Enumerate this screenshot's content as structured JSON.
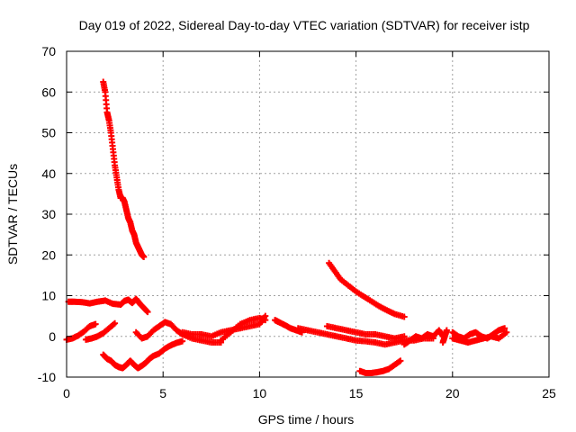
{
  "chart_data": {
    "type": "scatter",
    "title": "Day 019 of 2022, Sidereal Day-to-day VTEC variation (SDTVAR) for receiver istp",
    "xlabel": "GPS time / hours",
    "ylabel": "SDTVAR / TECUs",
    "xlim": [
      0,
      25
    ],
    "ylim": [
      -10,
      70
    ],
    "xticks": [
      0,
      5,
      10,
      15,
      20,
      25
    ],
    "yticks": [
      -10,
      0,
      10,
      20,
      30,
      40,
      50,
      60,
      70
    ],
    "grid": true,
    "marker": "+",
    "colors": {
      "series": "#ff0000",
      "grid": "#a0a0a0",
      "axis": "#000000"
    },
    "series": [
      {
        "name": "s1",
        "x": [
          1.9,
          2.0,
          2.1,
          2.2,
          2.3,
          2.4,
          2.5,
          2.6,
          2.7,
          2.8,
          2.9,
          3.0,
          3.1,
          3.2,
          3.3,
          3.4,
          3.5,
          3.6,
          3.7,
          3.8,
          3.9,
          4.0
        ],
        "y": [
          62.5,
          60.0,
          55.0,
          53.0,
          50.0,
          46.0,
          42.0,
          39.0,
          36.0,
          34.0,
          34.0,
          33.0,
          31.0,
          29.0,
          28.0,
          26.0,
          25.0,
          23.0,
          22.0,
          21.0,
          20.0,
          19.5
        ]
      },
      {
        "name": "s2",
        "x": [
          0.1,
          0.4,
          0.8,
          1.2,
          1.6,
          2.0,
          2.4,
          2.8,
          3.0,
          3.2,
          3.4,
          3.6,
          3.8,
          4.0,
          4.2
        ],
        "y": [
          8.5,
          8.5,
          8.4,
          8.1,
          8.5,
          8.8,
          8.0,
          7.8,
          8.7,
          9.0,
          8.2,
          9.2,
          8.0,
          7.0,
          6.0
        ]
      },
      {
        "name": "s3",
        "x": [
          0.0,
          0.3,
          0.6,
          0.9,
          1.2,
          1.5
        ],
        "y": [
          -0.8,
          -0.5,
          0.2,
          1.2,
          2.5,
          3.0
        ]
      },
      {
        "name": "s4",
        "x": [
          1.0,
          1.3,
          1.6,
          1.9,
          2.2,
          2.5
        ],
        "y": [
          -0.8,
          -0.5,
          0.0,
          0.8,
          2.0,
          3.2
        ]
      },
      {
        "name": "s5",
        "x": [
          1.9,
          2.1,
          2.3,
          2.5,
          2.7,
          2.9,
          3.1,
          3.3,
          3.5,
          3.7,
          3.9,
          4.1,
          4.3,
          4.5,
          4.8,
          5.1,
          5.4,
          5.7,
          6.0
        ],
        "y": [
          -4.5,
          -5.5,
          -6.0,
          -7.0,
          -7.5,
          -7.8,
          -7.0,
          -6.0,
          -7.0,
          -7.8,
          -7.2,
          -6.5,
          -5.5,
          -4.8,
          -4.2,
          -3.0,
          -2.2,
          -1.6,
          -1.2
        ]
      },
      {
        "name": "s6",
        "x": [
          3.6,
          3.9,
          4.2,
          4.5,
          4.8,
          5.1,
          5.4,
          5.7,
          6.0,
          6.5,
          7.0,
          7.5,
          8.0
        ],
        "y": [
          1.0,
          -0.5,
          0.0,
          1.5,
          2.5,
          3.5,
          3.0,
          1.5,
          0.5,
          -0.5,
          -1.0,
          -1.5,
          -1.5
        ]
      },
      {
        "name": "s7",
        "x": [
          6.0,
          6.5,
          7.0,
          7.5,
          8.0,
          8.5,
          9.0,
          9.5,
          10.0,
          10.3
        ],
        "y": [
          1.0,
          0.5,
          0.5,
          0.0,
          1.0,
          1.5,
          2.0,
          2.5,
          3.0,
          5.0
        ]
      },
      {
        "name": "s8",
        "x": [
          8.0,
          8.5,
          9.0,
          9.5,
          10.0,
          10.3
        ],
        "y": [
          -1.0,
          1.0,
          3.0,
          4.0,
          4.5,
          4.0
        ]
      },
      {
        "name": "s9",
        "x": [
          10.8,
          11.0,
          11.3,
          11.6,
          11.9,
          12.2
        ],
        "y": [
          4.0,
          3.5,
          2.8,
          2.0,
          1.5,
          1.0
        ]
      },
      {
        "name": "s10",
        "x": [
          12.0,
          12.5,
          13.0,
          13.5,
          14.0,
          14.5,
          15.0,
          15.5,
          16.0,
          16.5,
          17.0,
          17.5,
          18.0,
          18.5,
          19.0
        ],
        "y": [
          2.0,
          1.5,
          1.0,
          0.5,
          0.0,
          -0.5,
          -1.0,
          -1.2,
          -1.5,
          -2.0,
          -1.5,
          -1.0,
          -1.0,
          -0.5,
          -0.5
        ]
      },
      {
        "name": "s11",
        "x": [
          13.5,
          14.0,
          14.5,
          15.0,
          15.5,
          16.0,
          16.5,
          17.0,
          17.5
        ],
        "y": [
          2.5,
          2.0,
          1.5,
          1.0,
          0.5,
          0.5,
          0.0,
          -0.5,
          0.0
        ]
      },
      {
        "name": "s12",
        "x": [
          13.6,
          13.9,
          14.2,
          14.6,
          15.0,
          15.4,
          15.8,
          16.2,
          16.6,
          17.0,
          17.5
        ],
        "y": [
          18.0,
          16.0,
          14.0,
          12.5,
          11.0,
          9.8,
          8.6,
          7.4,
          6.4,
          5.5,
          4.8
        ]
      },
      {
        "name": "s13",
        "x": [
          15.2,
          15.5,
          15.8,
          16.1,
          16.4,
          16.7,
          17.0,
          17.3
        ],
        "y": [
          -8.5,
          -9.0,
          -9.0,
          -8.8,
          -8.5,
          -8.0,
          -7.0,
          -6.0
        ]
      },
      {
        "name": "s14",
        "x": [
          17.5,
          17.8,
          18.1,
          18.4,
          18.7,
          19.0,
          19.3,
          19.5
        ],
        "y": [
          -2.0,
          -1.0,
          0.0,
          -0.5,
          0.5,
          0.0,
          1.5,
          0.0
        ]
      },
      {
        "name": "s15",
        "x": [
          19.5,
          19.6,
          19.7
        ],
        "y": [
          -1.5,
          0.0,
          1.5
        ]
      },
      {
        "name": "s16",
        "x": [
          20.0,
          20.3,
          20.6,
          20.9,
          21.2,
          21.5,
          21.8,
          22.1,
          22.4,
          22.7
        ],
        "y": [
          1.0,
          0.0,
          -0.5,
          0.5,
          1.0,
          0.0,
          -0.5,
          0.5,
          1.5,
          2.0
        ]
      },
      {
        "name": "s17",
        "x": [
          20.0,
          20.4,
          20.8,
          21.2,
          21.6,
          22.0,
          22.4,
          22.8
        ],
        "y": [
          -0.5,
          -1.0,
          -1.5,
          -1.0,
          -0.5,
          0.0,
          -0.5,
          1.0
        ]
      }
    ]
  }
}
